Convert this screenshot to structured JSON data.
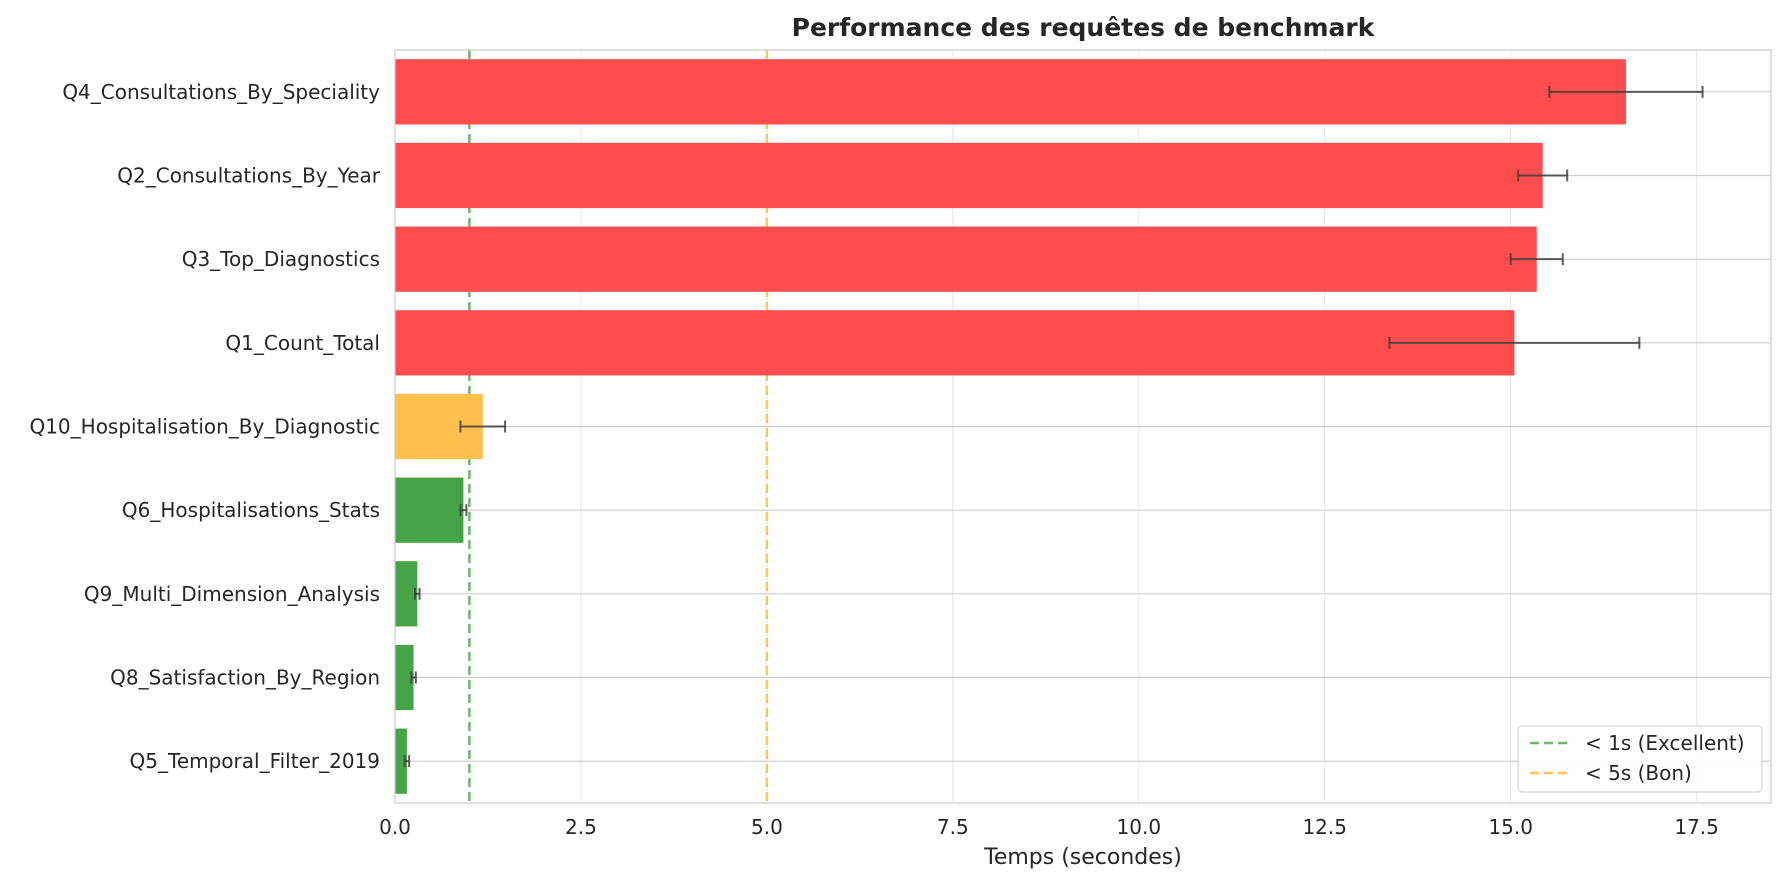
{
  "chart_data": {
    "type": "bar",
    "orientation": "horizontal",
    "title": "Performance des requêtes de benchmark",
    "xlabel": "Temps (secondes)",
    "ylabel": "",
    "xlim": [
      0,
      18.5
    ],
    "xticks": [
      0.0,
      2.5,
      5.0,
      7.5,
      10.0,
      12.5,
      15.0,
      17.5
    ],
    "xtick_labels": [
      "0.0",
      "2.5",
      "5.0",
      "7.5",
      "10.0",
      "12.5",
      "15.0",
      "17.5"
    ],
    "grid": true,
    "legend_position": "bottom-right",
    "categories": [
      "Q4_Consultations_By_Speciality",
      "Q2_Consultations_By_Year",
      "Q3_Top_Diagnostics",
      "Q1_Count_Total",
      "Q10_Hospitalisation_By_Diagnostic",
      "Q6_Hospitalisations_Stats",
      "Q9_Multi_Dimension_Analysis",
      "Q8_Satisfaction_By_Region",
      "Q5_Temporal_Filter_2019"
    ],
    "values": [
      16.55,
      15.43,
      15.35,
      15.05,
      1.18,
      0.92,
      0.3,
      0.25,
      0.16
    ],
    "errors": [
      1.03,
      0.33,
      0.35,
      1.68,
      0.3,
      0.04,
      0.03,
      0.03,
      0.03
    ],
    "bar_colors": [
      "#ff4d4d",
      "#ff4d4d",
      "#ff4d4d",
      "#ff4d4d",
      "#ffbf4d",
      "#47a347",
      "#47a347",
      "#47a347",
      "#47a347"
    ],
    "reference_lines": [
      {
        "value": 1.0,
        "label": "< 1s (Excellent)",
        "color": "#6ab86a"
      },
      {
        "value": 5.0,
        "label": "< 5s (Bon)",
        "color": "#ffc55c"
      }
    ]
  }
}
